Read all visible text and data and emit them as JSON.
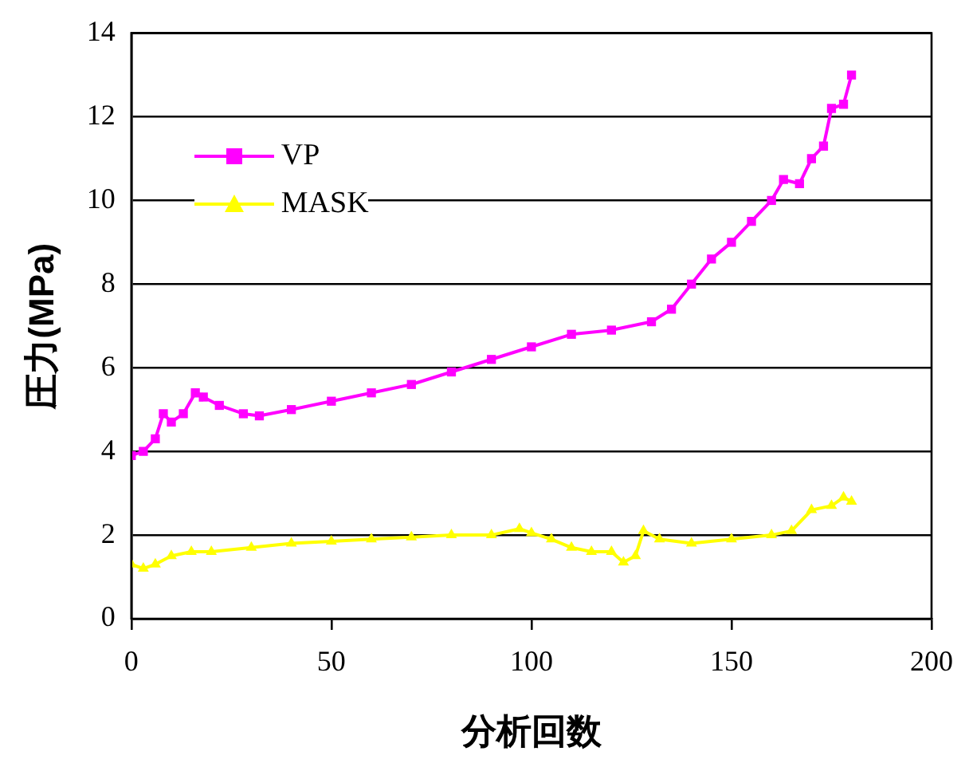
{
  "chart_data": {
    "type": "line",
    "xlabel": "分析回数",
    "ylabel": "圧力(MPa)",
    "xlim": [
      0,
      200
    ],
    "xticks": [
      0,
      50,
      100,
      150,
      200
    ],
    "ylim": [
      0,
      14
    ],
    "yticks": [
      0,
      2,
      4,
      6,
      8,
      10,
      12,
      14
    ],
    "grid": "y",
    "legend": "top left",
    "line_style": "solid",
    "series": [
      {
        "name": "VP",
        "color": "#ff00ff",
        "marker": "square",
        "x": [
          0,
          3,
          6,
          8,
          10,
          13,
          16,
          18,
          22,
          28,
          32,
          40,
          50,
          60,
          70,
          80,
          90,
          100,
          110,
          120,
          130,
          135,
          140,
          145,
          150,
          155,
          160,
          163,
          167,
          170,
          173,
          175,
          178,
          180
        ],
        "values": [
          3.9,
          4.0,
          4.3,
          4.9,
          4.7,
          4.9,
          5.4,
          5.3,
          5.1,
          4.9,
          4.85,
          5.0,
          5.2,
          5.4,
          5.6,
          5.9,
          6.2,
          6.5,
          6.8,
          6.9,
          7.1,
          7.4,
          8.0,
          8.6,
          9.0,
          9.5,
          10.0,
          10.5,
          10.4,
          11.0,
          11.3,
          12.2,
          12.3,
          13.0
        ]
      },
      {
        "name": "MASK",
        "color": "#ffff00",
        "marker": "triangle",
        "x": [
          0,
          3,
          6,
          10,
          15,
          20,
          30,
          40,
          50,
          60,
          70,
          80,
          90,
          97,
          100,
          105,
          110,
          115,
          120,
          123,
          126,
          128,
          132,
          140,
          150,
          160,
          165,
          170,
          175,
          178,
          180
        ],
        "values": [
          1.3,
          1.2,
          1.3,
          1.5,
          1.6,
          1.6,
          1.7,
          1.8,
          1.85,
          1.9,
          1.95,
          2.0,
          2.0,
          2.15,
          2.05,
          1.9,
          1.7,
          1.6,
          1.6,
          1.35,
          1.5,
          2.1,
          1.9,
          1.8,
          1.9,
          2.0,
          2.1,
          2.6,
          2.7,
          2.9,
          2.8
        ]
      }
    ]
  }
}
